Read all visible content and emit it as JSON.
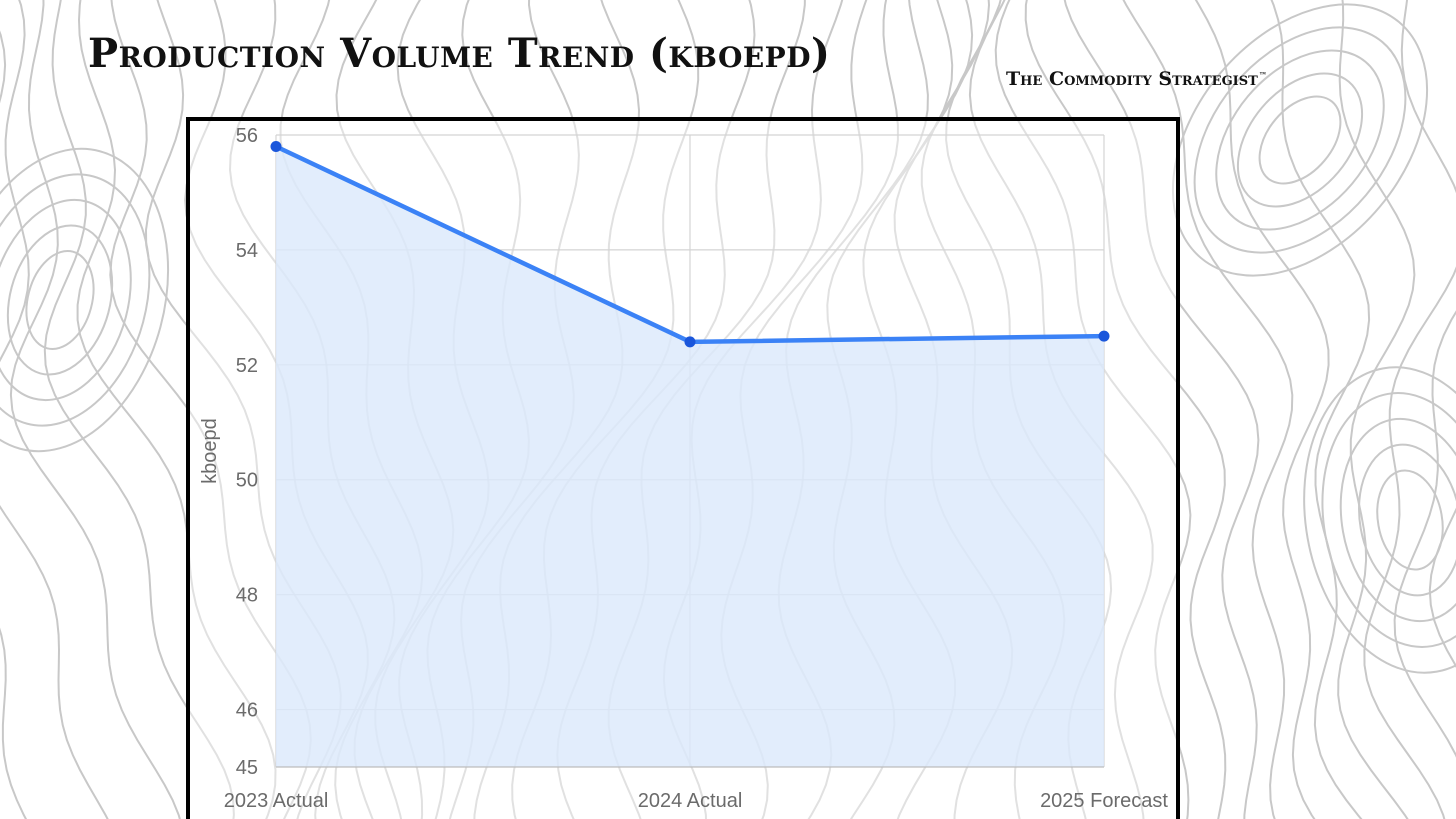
{
  "header": {
    "title": "Production Volume Trend (kboepd)",
    "brand": "The Commodity Strategist",
    "brand_mark": "™"
  },
  "colors": {
    "line": "#3b82f6",
    "point": "#1a56db",
    "area_fill": "#dbe9fb",
    "grid": "#d4d4d4",
    "axis_text": "#6b6b6b",
    "contour": "#c8c8c8"
  },
  "chart_data": {
    "type": "area",
    "categories": [
      "2023 Actual",
      "2024 Actual",
      "2025 Forecast"
    ],
    "series": [
      {
        "values": [
          55.8,
          52.4,
          52.5
        ]
      }
    ],
    "ylabel": "kboepd",
    "xlabel": "",
    "ylim": [
      45,
      56
    ],
    "yticks": [
      45,
      46,
      48,
      50,
      52,
      54,
      56
    ],
    "grid": true,
    "legend": "none"
  }
}
